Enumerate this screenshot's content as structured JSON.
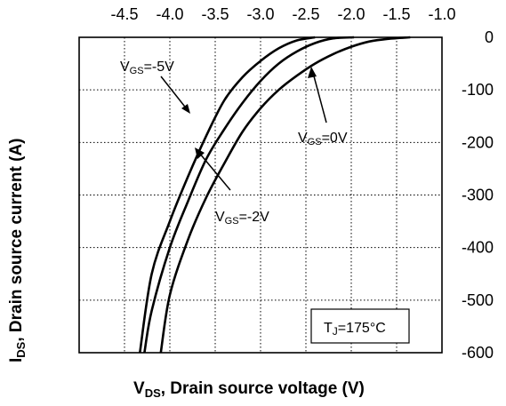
{
  "chart_data": {
    "type": "line",
    "xlabel": {
      "main": "V",
      "sub": "DS",
      "rest": ", Drain source voltage (V)"
    },
    "ylabel": {
      "main": "I",
      "sub": "DS",
      "rest": ", Drain source current (A)"
    },
    "xlim": [
      -5.0,
      -1.0
    ],
    "ylim": [
      -600,
      0
    ],
    "xticks": [
      -4.5,
      -4.0,
      -3.5,
      -3.0,
      -2.5,
      -2.0,
      -1.5,
      -1.0
    ],
    "xtick_labels": [
      "-4.5",
      "-4.0",
      "-3.5",
      "-3.0",
      "-2.5",
      "-2.0",
      "-1.5",
      "-1.0"
    ],
    "yticks": [
      0,
      -100,
      -200,
      -300,
      -400,
      -500,
      -600
    ],
    "ytick_labels": [
      "0",
      "-100",
      "-200",
      "-300",
      "-400",
      "-500",
      "-600"
    ],
    "x_axis_position": "top",
    "y_axis_position": "right",
    "grid": true,
    "series": [
      {
        "name": "VGS=-5V",
        "label": {
          "main": "V",
          "sub": "GS",
          "rest": "=-5V"
        },
        "x": [
          -2.4,
          -2.6,
          -2.8,
          -3.0,
          -3.2,
          -3.4,
          -3.6,
          -3.8,
          -4.0,
          -4.2,
          -4.33
        ],
        "y": [
          0,
          -6,
          -21,
          -45,
          -76,
          -120,
          -188,
          -265,
          -350,
          -450,
          -600
        ]
      },
      {
        "name": "VGS=-2V",
        "label": {
          "main": "V",
          "sub": "GS",
          "rest": "=-2V"
        },
        "x": [
          -1.97,
          -2.2,
          -2.4,
          -2.6,
          -2.8,
          -3.0,
          -3.2,
          -3.4,
          -3.6,
          -3.8,
          -4.0,
          -4.2,
          -4.28
        ],
        "y": [
          0,
          -2,
          -11,
          -27,
          -50,
          -83,
          -125,
          -175,
          -232,
          -312,
          -400,
          -520,
          -600
        ]
      },
      {
        "name": "VGS=0V",
        "label": {
          "main": "V",
          "sub": "GS",
          "rest": "=0V"
        },
        "x": [
          -1.35,
          -1.6,
          -1.8,
          -2.0,
          -2.2,
          -2.4,
          -2.6,
          -2.8,
          -3.0,
          -3.2,
          -3.4,
          -3.6,
          -3.8,
          -4.0,
          -4.1
        ],
        "y": [
          0,
          -3,
          -8,
          -18,
          -32,
          -50,
          -73,
          -100,
          -135,
          -180,
          -240,
          -305,
          -385,
          -490,
          -600
        ]
      }
    ],
    "annotations": [
      {
        "main": "T",
        "sub": "J",
        "rest": "=175°C"
      }
    ]
  }
}
